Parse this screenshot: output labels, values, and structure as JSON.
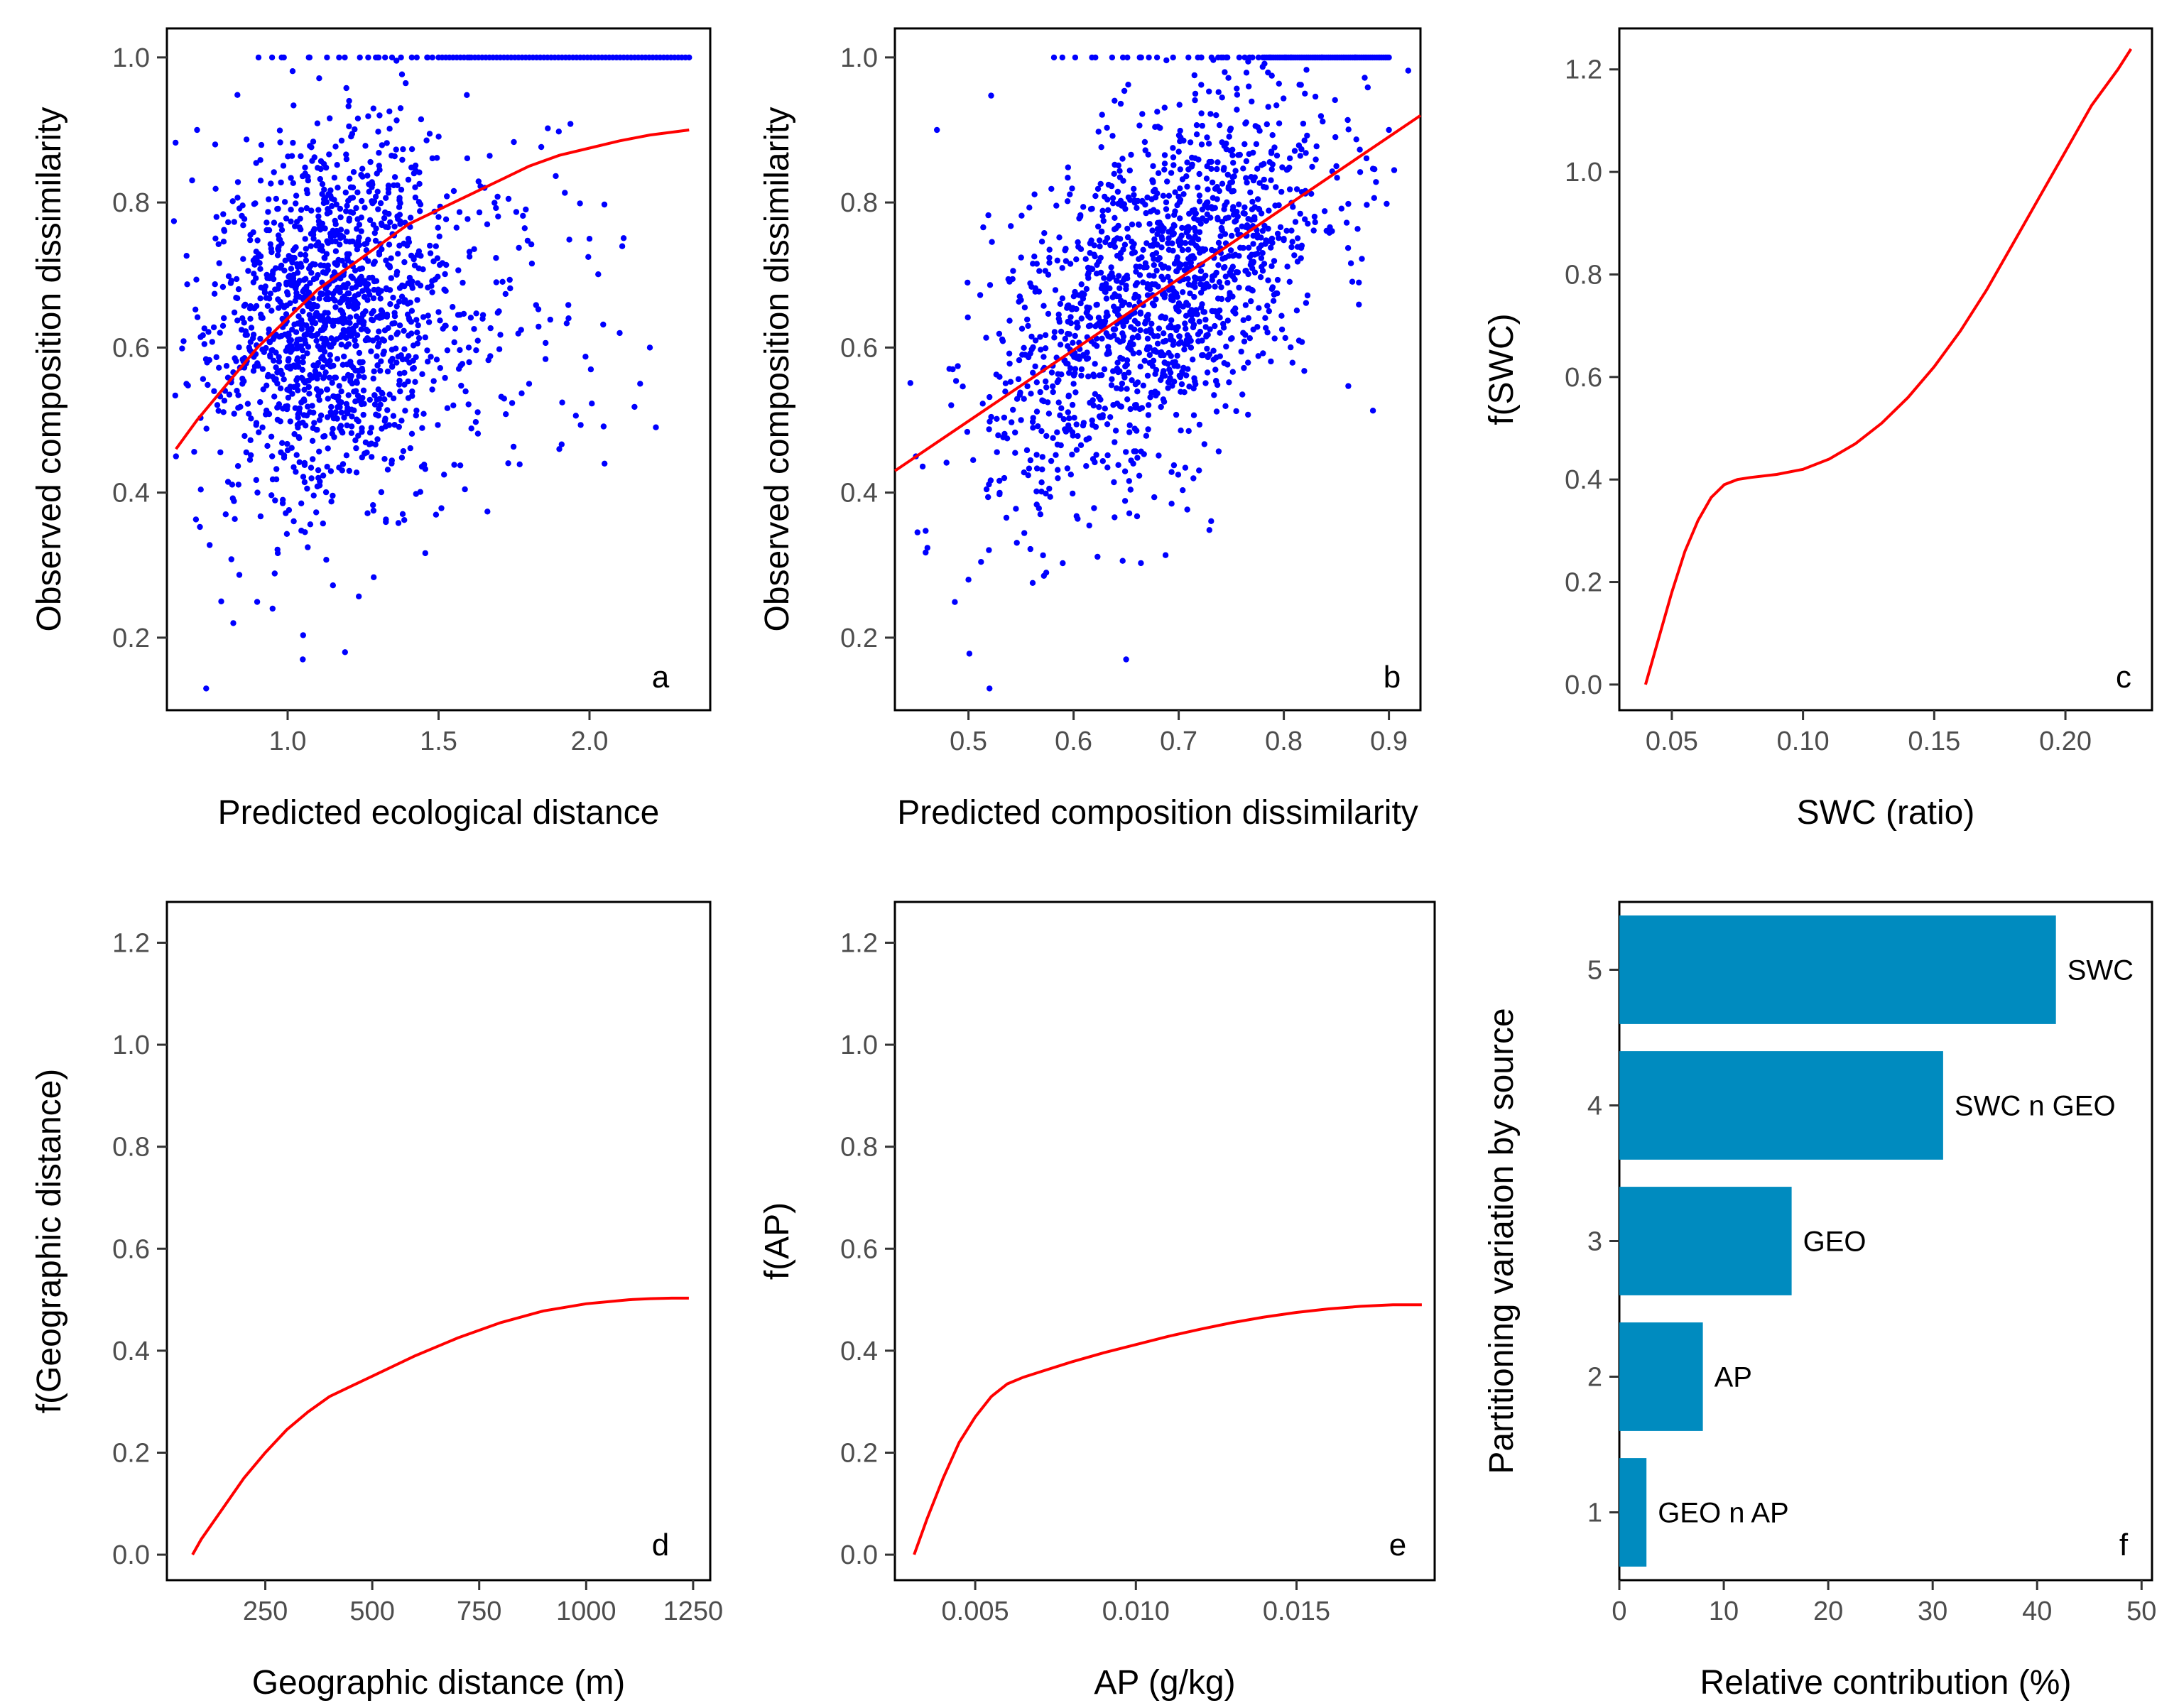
{
  "colors": {
    "points": "#0000ff",
    "curve": "#ff0000",
    "bars": "#008bbf",
    "axis": "#000000",
    "tick_text": "#4d4d4d"
  },
  "chart_data": [
    {
      "panel": "a",
      "type": "scatter",
      "xlabel": "Predicted ecological distance",
      "ylabel": "Observed composition dissimilarity",
      "xlim": [
        0.6,
        2.4
      ],
      "ylim": [
        0.1,
        1.04
      ],
      "xticks": [
        "1.0",
        "1.5",
        "2.0"
      ],
      "yticks": [
        "0.2",
        "0.4",
        "0.6",
        "0.8",
        "1.0"
      ],
      "fit_curve": {
        "x": [
          0.63,
          0.7,
          0.8,
          0.9,
          1.0,
          1.1,
          1.2,
          1.3,
          1.4,
          1.5,
          1.6,
          1.7,
          1.8,
          1.9,
          2.0,
          2.1,
          2.2,
          2.33
        ],
        "y": [
          0.46,
          0.5,
          0.55,
          0.6,
          0.64,
          0.68,
          0.71,
          0.74,
          0.77,
          0.79,
          0.81,
          0.83,
          0.85,
          0.865,
          0.875,
          0.885,
          0.893,
          0.9
        ]
      },
      "sample_points": {
        "x": [
          0.63,
          0.7,
          0.73,
          0.78,
          0.82,
          0.85,
          0.9,
          0.95,
          1.0,
          1.05,
          1.1,
          1.2,
          1.3,
          1.4,
          1.5,
          1.6,
          1.7,
          1.8,
          1.9,
          2.0,
          2.05,
          2.1,
          2.2,
          2.22,
          0.76,
          1.05,
          1.19
        ],
        "y": [
          0.45,
          0.9,
          0.13,
          0.25,
          0.22,
          0.55,
          0.4,
          0.24,
          0.6,
          0.65,
          0.7,
          0.72,
          0.68,
          0.75,
          0.78,
          0.6,
          0.65,
          0.55,
          0.46,
          0.75,
          0.44,
          0.62,
          0.6,
          0.49,
          0.88,
          0.17,
          0.18
        ]
      }
    },
    {
      "panel": "b",
      "type": "scatter",
      "xlabel": "Predicted composition dissimilarity",
      "ylabel": "Observed composition dissimilarity",
      "xlim": [
        0.43,
        0.93
      ],
      "ylim": [
        0.1,
        1.04
      ],
      "xticks": [
        "0.5",
        "0.6",
        "0.7",
        "0.8",
        "0.9"
      ],
      "yticks": [
        "0.2",
        "0.4",
        "0.6",
        "0.8",
        "1.0"
      ],
      "fit_curve": {
        "x": [
          0.43,
          0.93
        ],
        "y": [
          0.43,
          0.92
        ]
      },
      "sample_points": {
        "x": [
          0.45,
          0.47,
          0.5,
          0.52,
          0.55,
          0.6,
          0.65,
          0.7,
          0.75,
          0.8,
          0.85,
          0.9
        ],
        "y": [
          0.45,
          0.9,
          0.28,
          0.13,
          0.5,
          0.55,
          0.17,
          0.65,
          0.7,
          0.75,
          0.85,
          0.9
        ]
      }
    },
    {
      "panel": "c",
      "type": "line",
      "xlabel": "SWC (ratio)",
      "ylabel": "f(SWC)",
      "xlim": [
        0.03,
        0.233
      ],
      "ylim": [
        -0.05,
        1.28
      ],
      "xticks": [
        "0.05",
        "0.10",
        "0.15",
        "0.20"
      ],
      "yticks": [
        "0.0",
        "0.2",
        "0.4",
        "0.6",
        "0.8",
        "1.0",
        "1.2"
      ],
      "x": [
        0.04,
        0.045,
        0.05,
        0.055,
        0.06,
        0.065,
        0.07,
        0.075,
        0.08,
        0.09,
        0.1,
        0.11,
        0.12,
        0.13,
        0.14,
        0.15,
        0.16,
        0.17,
        0.18,
        0.19,
        0.2,
        0.21,
        0.22,
        0.225
      ],
      "y": [
        0.0,
        0.09,
        0.18,
        0.26,
        0.32,
        0.365,
        0.39,
        0.4,
        0.404,
        0.41,
        0.42,
        0.44,
        0.47,
        0.51,
        0.56,
        0.62,
        0.69,
        0.77,
        0.86,
        0.95,
        1.04,
        1.13,
        1.2,
        1.24
      ]
    },
    {
      "panel": "d",
      "type": "line",
      "xlabel": "Geographic distance (m)",
      "ylabel": "f(Geographic distance)",
      "xlim": [
        20,
        1290
      ],
      "ylim": [
        -0.05,
        1.28
      ],
      "xticks": [
        "250",
        "500",
        "750",
        "1000",
        "1250"
      ],
      "yticks": [
        "0.0",
        "0.2",
        "0.4",
        "0.6",
        "0.8",
        "1.0",
        "1.2"
      ],
      "x": [
        80,
        100,
        150,
        200,
        250,
        300,
        350,
        400,
        450,
        500,
        600,
        700,
        800,
        900,
        1000,
        1100,
        1150,
        1200,
        1240
      ],
      "y": [
        0.0,
        0.03,
        0.09,
        0.15,
        0.2,
        0.245,
        0.28,
        0.31,
        0.33,
        0.35,
        0.39,
        0.425,
        0.455,
        0.478,
        0.492,
        0.5,
        0.502,
        0.503,
        0.503
      ]
    },
    {
      "panel": "e",
      "type": "line",
      "xlabel": "AP (g/kg)",
      "ylabel": "f(AP)",
      "xlim": [
        0.0025,
        0.0193
      ],
      "ylim": [
        -0.05,
        1.28
      ],
      "xticks": [
        "0.005",
        "0.010",
        "0.015"
      ],
      "yticks": [
        "0.0",
        "0.2",
        "0.4",
        "0.6",
        "0.8",
        "1.0",
        "1.2"
      ],
      "x": [
        0.0031,
        0.0035,
        0.004,
        0.0045,
        0.005,
        0.0055,
        0.006,
        0.0065,
        0.007,
        0.008,
        0.009,
        0.01,
        0.011,
        0.012,
        0.013,
        0.014,
        0.015,
        0.016,
        0.017,
        0.018,
        0.0189
      ],
      "y": [
        0.0,
        0.07,
        0.15,
        0.22,
        0.27,
        0.31,
        0.335,
        0.348,
        0.358,
        0.378,
        0.396,
        0.412,
        0.428,
        0.442,
        0.455,
        0.466,
        0.475,
        0.482,
        0.487,
        0.49,
        0.49
      ]
    },
    {
      "panel": "f",
      "type": "bar",
      "orientation": "horizontal",
      "xlabel": "Relative contribution (%)",
      "ylabel": "Partitioning variation by source",
      "xlim": [
        0,
        51
      ],
      "ylim": [
        0.5,
        5.5
      ],
      "xticks": [
        "0",
        "10",
        "20",
        "30",
        "40",
        "50"
      ],
      "yticks": [
        "1",
        "2",
        "3",
        "4",
        "5"
      ],
      "positions": [
        5,
        4,
        3,
        2,
        1
      ],
      "labels": [
        "SWC",
        "SWC n GEO",
        "GEO",
        "AP",
        "GEO n AP"
      ],
      "values": [
        41.8,
        31.0,
        16.5,
        8.0,
        2.6
      ]
    }
  ]
}
